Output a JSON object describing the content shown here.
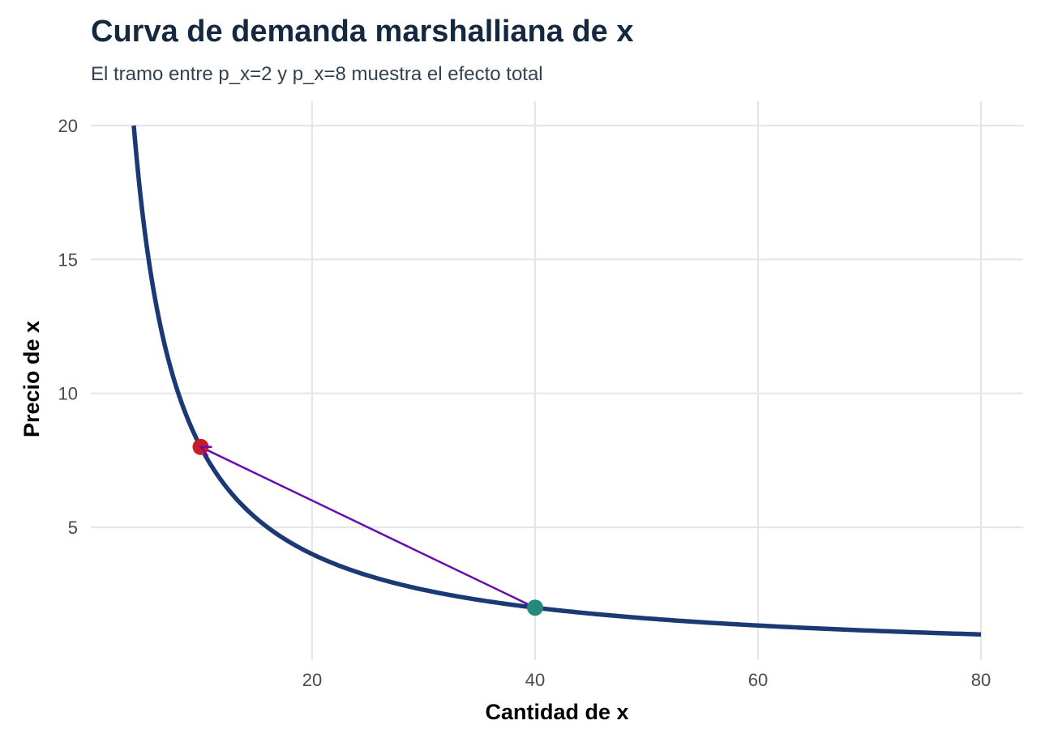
{
  "chart_data": {
    "type": "line",
    "title": "Curva de demanda marshalliana de x",
    "subtitle": "El tramo entre p_x=2 y p_x=8 muestra el efecto total",
    "xlabel": "Cantidad de x",
    "ylabel": "Precio de x",
    "xlim": [
      0,
      84
    ],
    "ylim": [
      0,
      21
    ],
    "x_ticks": [
      20,
      40,
      60,
      80
    ],
    "y_ticks": [
      5,
      10,
      15,
      20
    ],
    "grid": true,
    "legend": "none",
    "series": [
      {
        "curve": "p_x = 80 / x",
        "x": [
          4,
          5,
          6,
          7,
          8,
          9,
          10,
          12,
          14,
          16,
          18,
          20,
          24,
          28,
          32,
          36,
          40,
          45,
          50,
          55,
          60,
          65,
          70,
          75,
          80
        ],
        "y": [
          20,
          16,
          13.33,
          11.43,
          10,
          8.89,
          8,
          6.67,
          5.71,
          5,
          4.44,
          4,
          3.33,
          2.86,
          2.5,
          2.22,
          2,
          1.78,
          1.6,
          1.45,
          1.33,
          1.23,
          1.14,
          1.07,
          1
        ],
        "color": "#1b3a73"
      }
    ],
    "points": [
      {
        "x": 10,
        "y": 8,
        "color": "#c81d25"
      },
      {
        "x": 40,
        "y": 2,
        "color": "#26897c"
      }
    ],
    "arrow": {
      "from": [
        40,
        2
      ],
      "to": [
        10,
        8
      ],
      "color": "#6a0dad"
    }
  }
}
